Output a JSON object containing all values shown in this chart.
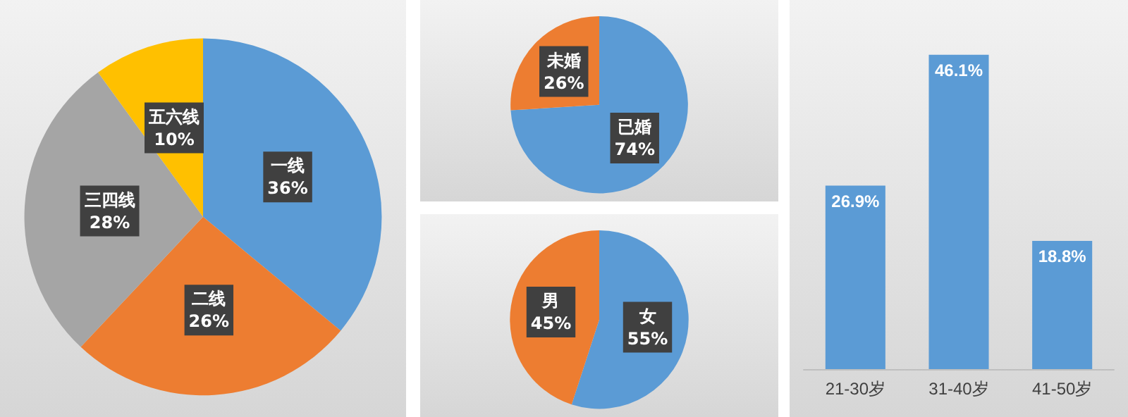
{
  "chart_data": [
    {
      "type": "pie",
      "categories": [
        "一线",
        "二线",
        "三四线",
        "五六线"
      ],
      "values": [
        36,
        26,
        28,
        10
      ],
      "colors": [
        "#5b9bd5",
        "#ed7d31",
        "#a5a5a5",
        "#ffc000"
      ],
      "value_labels": [
        "36%",
        "26%",
        "28%",
        "10%"
      ]
    },
    {
      "type": "pie",
      "categories": [
        "已婚",
        "未婚"
      ],
      "values": [
        74,
        26
      ],
      "colors": [
        "#5b9bd5",
        "#ed7d31"
      ],
      "value_labels": [
        "74%",
        "26%"
      ]
    },
    {
      "type": "pie",
      "categories": [
        "女",
        "男"
      ],
      "values": [
        55,
        45
      ],
      "colors": [
        "#5b9bd5",
        "#ed7d31"
      ],
      "value_labels": [
        "55%",
        "45%"
      ]
    },
    {
      "type": "bar",
      "categories": [
        "21-30岁",
        "31-40岁",
        "41-50岁"
      ],
      "values": [
        26.9,
        46.1,
        18.8
      ],
      "color": "#5b9bd5",
      "value_labels": [
        "26.9%",
        "46.1%",
        "18.8%"
      ]
    }
  ]
}
